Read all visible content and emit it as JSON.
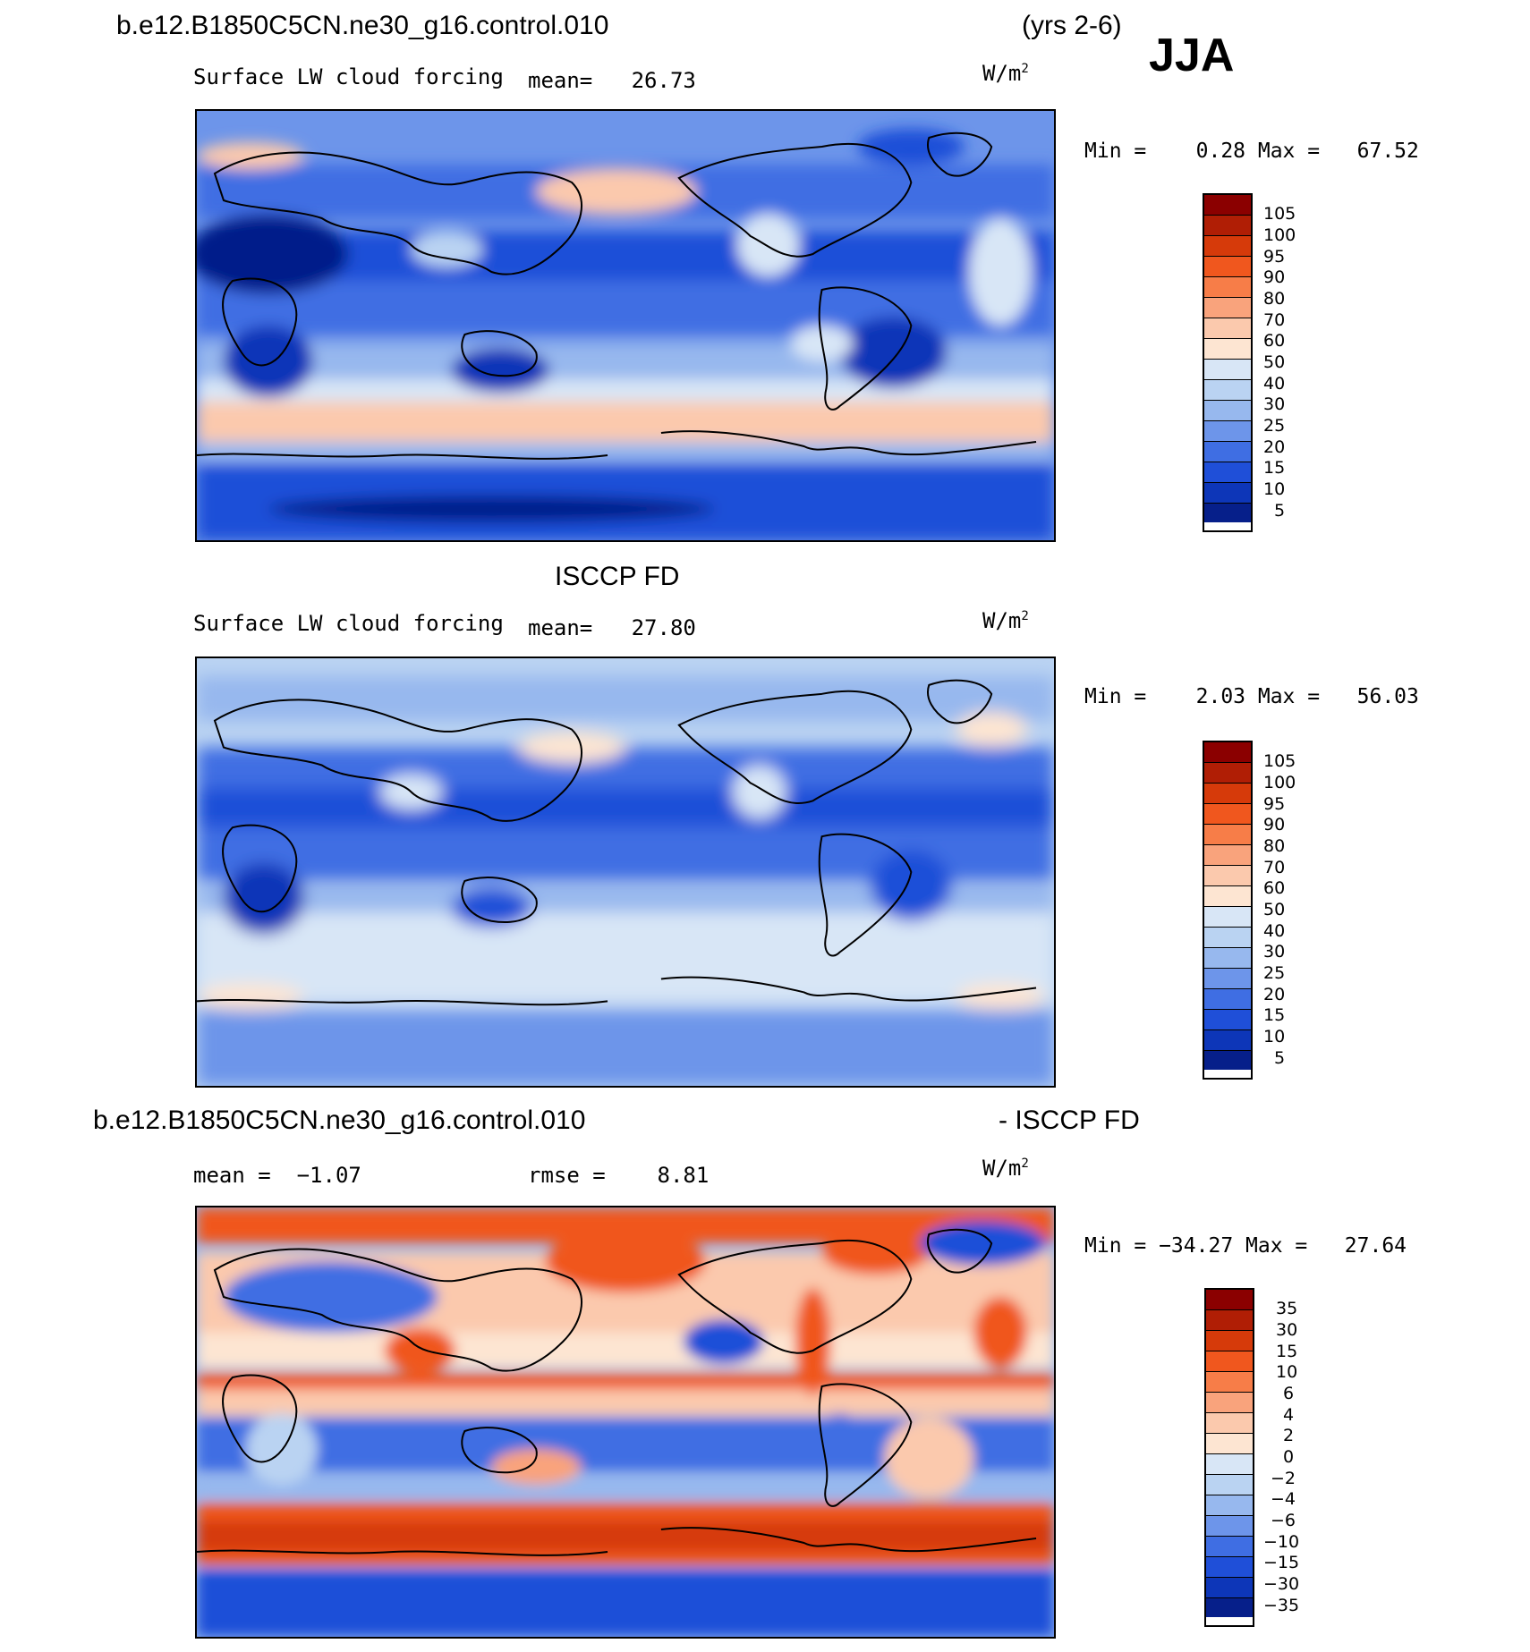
{
  "header": {
    "case_name": "b.e12.B1850C5CN.ne30_g16.control.010",
    "years": "(yrs 2-6)",
    "season": "JJA"
  },
  "panels": [
    {
      "title": "",
      "variable": "Surface LW cloud forcing",
      "mean_text": "mean=   26.73",
      "units": "W/m",
      "units_sup": "2",
      "min_max": "Min =    0.28 Max =   67.52",
      "colorbar_labels": [
        "105",
        "100",
        "95",
        "90",
        "80",
        "70",
        "60",
        "50",
        "40",
        "30",
        "25",
        "20",
        "15",
        "10",
        "5"
      ]
    },
    {
      "title": "ISCCP FD",
      "variable": "Surface LW cloud forcing",
      "mean_text": "mean=   27.80",
      "units": "W/m",
      "units_sup": "2",
      "min_max": "Min =    2.03 Max =   56.03",
      "colorbar_labels": [
        "105",
        "100",
        "95",
        "90",
        "80",
        "70",
        "60",
        "50",
        "40",
        "30",
        "25",
        "20",
        "15",
        "10",
        "5"
      ]
    },
    {
      "title_left": "b.e12.B1850C5CN.ne30_g16.control.010",
      "title_right": "- ISCCP FD",
      "mean_text": "mean =  −1.07",
      "rmse_text": "rmse =    8.81",
      "units": "W/m",
      "units_sup": "2",
      "min_max": "Min = −34.27 Max =   27.64",
      "colorbar_labels": [
        "35",
        "30",
        "15",
        "10",
        "6",
        "4",
        "2",
        "0",
        "−2",
        "−4",
        "−6",
        "−10",
        "−15",
        "−30",
        "−35"
      ]
    }
  ],
  "colors": {
    "scale_abs": [
      "#8b0000",
      "#b01e05",
      "#d63a0a",
      "#f0571e",
      "#f77d48",
      "#f9a37c",
      "#fbc9ad",
      "#fde5d2",
      "#d8e6f6",
      "#bad3f2",
      "#97b8ee",
      "#6d95ea",
      "#3f6ee3",
      "#1f4fd8",
      "#0d36b8",
      "#061f8a"
    ],
    "scale_diff": [
      "#8b0000",
      "#b01e05",
      "#d63a0a",
      "#f0571e",
      "#f77d48",
      "#f9a37c",
      "#fbc9ad",
      "#fde5d2",
      "#d8e6f6",
      "#bad3f2",
      "#97b8ee",
      "#6d95ea",
      "#3f6ee3",
      "#1f4fd8",
      "#0d36b8",
      "#061f8a"
    ]
  }
}
